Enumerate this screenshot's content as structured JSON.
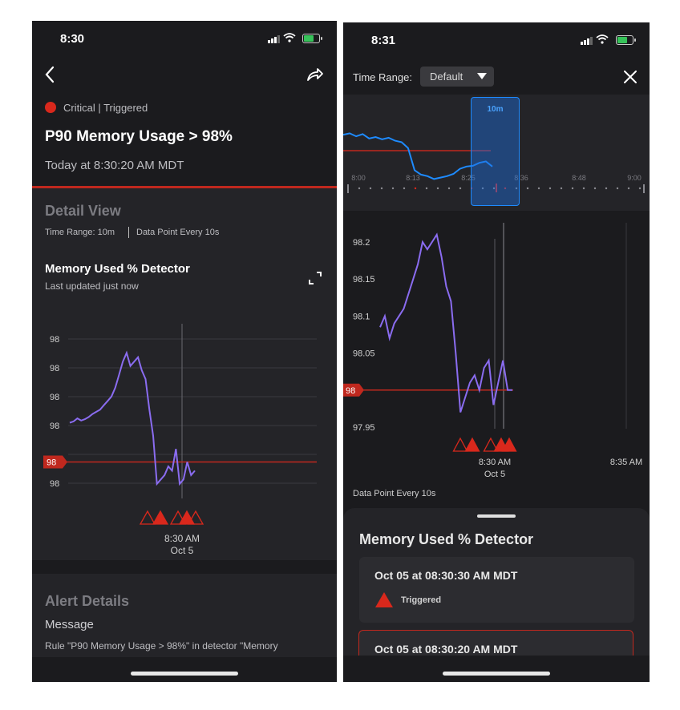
{
  "left": {
    "status_time": "8:30",
    "severity": "Critical | Triggered",
    "title": "P90 Memory Usage > 98%",
    "timestamp": "Today at 8:30:20 AM MDT",
    "detail_view": {
      "heading": "Detail View",
      "time_range": "Time Range: 10m",
      "data_point": "Data Point Every 10s"
    },
    "chart_title": "Memory Used % Detector",
    "chart_subtitle": "Last updated just now",
    "alert_details": {
      "heading": "Alert Details",
      "message_label": "Message",
      "message_text": "Rule \"P90 Memory Usage > 98%\" in detector \"Memory"
    }
  },
  "right": {
    "status_time": "8:31",
    "time_range_label": "Time Range:",
    "time_range_value": "Default",
    "window_label": "10m",
    "data_point": "Data Point Every 10s",
    "sheet": {
      "title": "Memory Used % Detector",
      "events": [
        {
          "time": "Oct 05 at 08:30:30 AM MDT",
          "status": "Triggered"
        },
        {
          "time": "Oct 05 at 08:30:20 AM MDT"
        }
      ]
    }
  },
  "colors": {
    "background": "#1b1b1e",
    "accent_red": "#c0281e",
    "series_purple": "#8a6cf0",
    "overview_blue": "#1e8bff"
  },
  "chart_data": [
    {
      "type": "line",
      "y_ticks": [
        "98",
        "98",
        "98",
        "98",
        "98",
        "98"
      ],
      "threshold_label": "98",
      "x_label": [
        "8:30 AM",
        "Oct 5"
      ],
      "series": [
        {
          "values": [
            97.99,
            97.993,
            98.0,
            97.995,
            97.998,
            98.003,
            98.01,
            98.015,
            98.02,
            98.03,
            98.04,
            98.05,
            98.07,
            98.1,
            98.13,
            98.15,
            98.12,
            98.13,
            98.14,
            98.11,
            98.09,
            98.02,
            97.96,
            97.85,
            97.86,
            97.87,
            97.89,
            97.88,
            97.93,
            97.85,
            97.86,
            97.9,
            97.87,
            97.88
          ]
        }
      ],
      "threshold": 97.9,
      "triggered_markers": 5
    },
    {
      "type": "line",
      "y_ticks": [
        "98.2",
        "98.15",
        "98.1",
        "98.05",
        "98",
        "97.95"
      ],
      "threshold_label": "98",
      "x_labels": [
        [
          "8:30 AM",
          "Oct 5"
        ],
        [
          "8:35 AM"
        ]
      ],
      "ylim": [
        97.95,
        98.2
      ],
      "threshold": 98.0,
      "series": [
        {
          "values": [
            98.085,
            98.1,
            98.07,
            98.09,
            98.1,
            98.11,
            98.13,
            98.15,
            98.17,
            98.2,
            98.19,
            98.2,
            98.21,
            98.18,
            98.14,
            98.12,
            98.05,
            97.97,
            97.99,
            98.01,
            98.02,
            98.0,
            98.03,
            98.04,
            97.98,
            98.01,
            98.04,
            98.0,
            98.0
          ]
        }
      ],
      "triggered_markers": 5
    },
    {
      "type": "line",
      "x_ticks": [
        "8:00",
        "8:13",
        "8:25",
        "8:36",
        "8:48",
        "9:00"
      ],
      "window_label": "10m",
      "series": [
        {
          "values": [
            0.78,
            0.8,
            0.76,
            0.79,
            0.73,
            0.75,
            0.72,
            0.74,
            0.7,
            0.68,
            0.6,
            0.3,
            0.24,
            0.22,
            0.18,
            0.2,
            0.22,
            0.25,
            0.32,
            0.35,
            0.36,
            0.4,
            0.42,
            0.35
          ]
        }
      ]
    }
  ]
}
